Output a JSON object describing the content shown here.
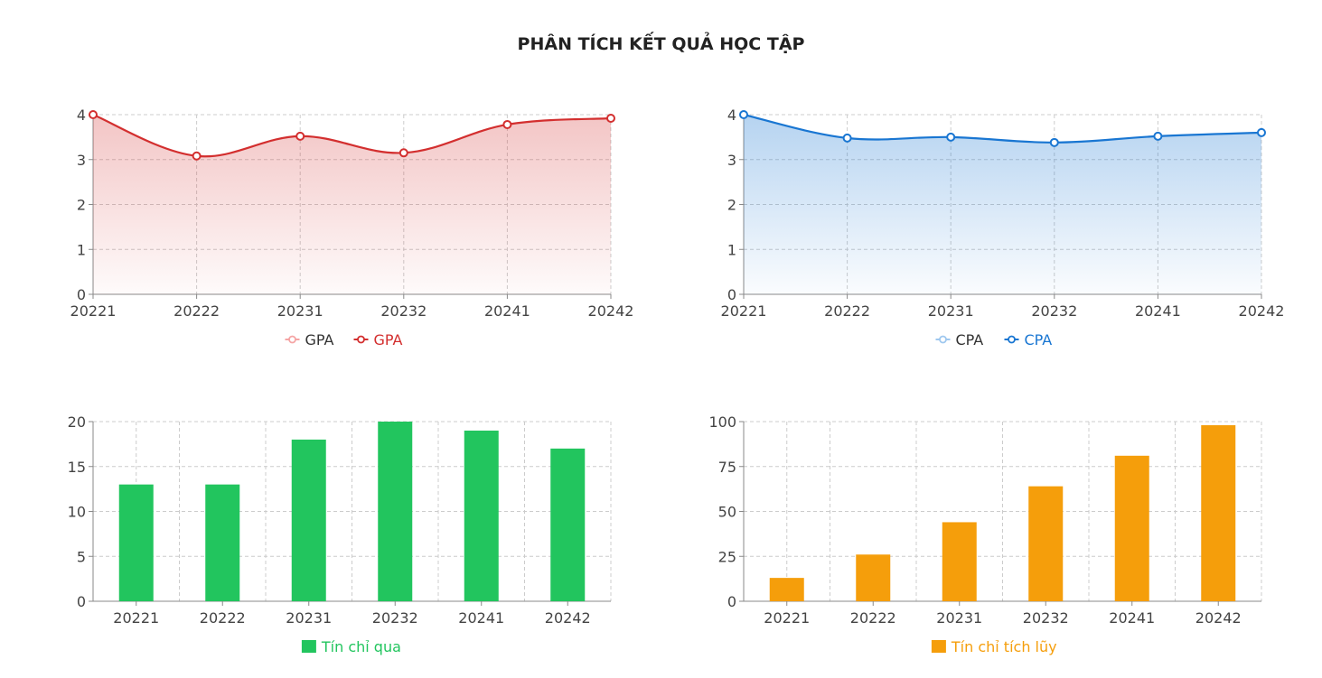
{
  "page": {
    "title": "PHÂN TÍCH KẾT QUẢ HỌC TẬP"
  },
  "colors": {
    "gpa": "#d32f2f",
    "gpa_light": "#f5a5a5",
    "cpa": "#1976d2",
    "cpa_light": "#9fc8ef",
    "credits_passed": "#22c55e",
    "credits_accumulated": "#f59e0b",
    "grid": "#cccccc",
    "axis": "#888888"
  },
  "chart_data": [
    {
      "id": "gpa",
      "type": "area",
      "categories": [
        "20221",
        "20222",
        "20231",
        "20232",
        "20241",
        "20242"
      ],
      "series": [
        {
          "name": "GPA",
          "values": [
            4.0,
            3.08,
            3.52,
            3.15,
            3.78,
            3.92
          ]
        }
      ],
      "legend": [
        "GPA",
        "GPA"
      ],
      "ylim": [
        0,
        4
      ],
      "yticks": [
        0,
        1,
        2,
        3,
        4
      ],
      "grid": true,
      "legend_position": "bottom"
    },
    {
      "id": "cpa",
      "type": "area",
      "categories": [
        "20221",
        "20222",
        "20231",
        "20232",
        "20241",
        "20242"
      ],
      "series": [
        {
          "name": "CPA",
          "values": [
            4.0,
            3.48,
            3.5,
            3.38,
            3.52,
            3.6
          ]
        }
      ],
      "legend": [
        "CPA",
        "CPA"
      ],
      "ylim": [
        0,
        4
      ],
      "yticks": [
        0,
        1,
        2,
        3,
        4
      ],
      "grid": true,
      "legend_position": "bottom"
    },
    {
      "id": "credits_passed",
      "type": "bar",
      "categories": [
        "20221",
        "20222",
        "20231",
        "20232",
        "20241",
        "20242"
      ],
      "series": [
        {
          "name": "Tín chỉ qua",
          "values": [
            13,
            13,
            18,
            20,
            19,
            17
          ]
        }
      ],
      "ylim": [
        0,
        20
      ],
      "yticks": [
        0,
        5,
        10,
        15,
        20
      ],
      "grid": true,
      "legend_position": "bottom"
    },
    {
      "id": "credits_accumulated",
      "type": "bar",
      "categories": [
        "20221",
        "20222",
        "20231",
        "20232",
        "20241",
        "20242"
      ],
      "series": [
        {
          "name": "Tín chỉ tích lũy",
          "values": [
            13,
            26,
            44,
            64,
            81,
            98
          ]
        }
      ],
      "ylim": [
        0,
        100
      ],
      "yticks": [
        0,
        25,
        50,
        75,
        100
      ],
      "grid": true,
      "legend_position": "bottom"
    }
  ]
}
